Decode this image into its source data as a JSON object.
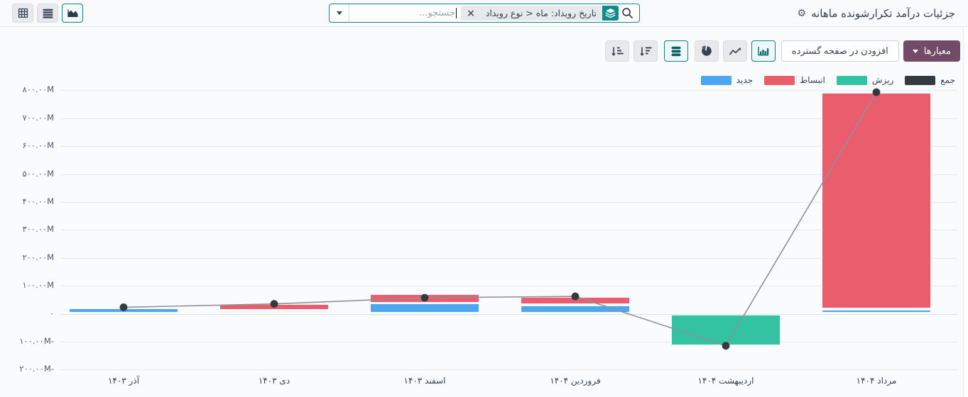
{
  "topbar": {
    "title": "جزئیات درآمد تکرارشونده ماهانه",
    "search": {
      "placeholder": "جستجو...",
      "facet_label": "تاریخ رویداد: ماه ‎>‎ نوع رویداد"
    }
  },
  "toolbar": {
    "measures_button": "معیارها",
    "insert_spreadsheet_button": "افزودن در صفحه گسترده"
  },
  "icons": {
    "view_pivot": "pivot-table-icon",
    "view_list": "list-icon",
    "view_graph": "area-chart-icon",
    "search": "magnifier-icon",
    "facet": "layers-icon",
    "facet_remove": "close-x-icon",
    "search_expand": "caret-down-icon",
    "settings": "gear-icon",
    "bar_chart": "bar-chart-icon",
    "line_chart": "line-chart-icon",
    "pie_chart": "pie-chart-icon",
    "stacked": "stack-icon",
    "sort_desc": "sort-amount-desc-icon",
    "sort_asc": "sort-amount-asc-icon"
  },
  "chart_data": {
    "type": "bar",
    "subtype": "stacked-bars-with-total-line",
    "title": "جزئیات درآمد تکرارشونده ماهانه",
    "unit": "M",
    "grid": true,
    "legend_position": "top-right",
    "ylim": [
      -250,
      850
    ],
    "categories": [
      "آذر ۱۴۰۳",
      "دی ۱۴۰۳",
      "اسفند ۱۴۰۳",
      "فروردین ۱۴۰۴",
      "اردیبهشت ۱۴۰۴",
      "مرداد ۱۴۰۴"
    ],
    "series": [
      {
        "name": "جدید",
        "type": "bar",
        "color": "#4BA7F0",
        "values": [
          20,
          10,
          36,
          30,
          0,
          15
        ]
      },
      {
        "name": "انبساط",
        "type": "bar",
        "color": "#EA5D6D",
        "values": [
          0,
          24,
          34,
          30,
          0,
          775
        ]
      },
      {
        "name": "ریزش",
        "type": "bar",
        "color": "#33C3A3",
        "values": [
          0,
          0,
          -10,
          0,
          -112,
          0
        ]
      },
      {
        "name": "جمع",
        "type": "line",
        "color": "#343A40",
        "line_color": "#8F9295",
        "values": [
          23,
          35,
          57,
          62,
          -115,
          793
        ]
      }
    ],
    "y_ticks": [
      {
        "value": 800,
        "label": "۸۰۰.۰۰M"
      },
      {
        "value": 700,
        "label": "۷۰۰.۰۰M"
      },
      {
        "value": 600,
        "label": "۶۰۰.۰۰M"
      },
      {
        "value": 500,
        "label": "۵۰۰.۰۰M"
      },
      {
        "value": 400,
        "label": "۴۰۰.۰۰M"
      },
      {
        "value": 300,
        "label": "۳۰۰.۰۰M"
      },
      {
        "value": 200,
        "label": "۲۰۰.۰۰M"
      },
      {
        "value": 100,
        "label": "۱۰۰.۰۰M"
      },
      {
        "value": 0,
        "label": "۰"
      },
      {
        "value": -100,
        "label": "۱۰۰.۰۰M-"
      },
      {
        "value": -200,
        "label": "۲۰۰.۰۰M-"
      }
    ],
    "legend": [
      {
        "label": "جمع",
        "color": "#343A40"
      },
      {
        "label": "ریزش",
        "color": "#33C3A3"
      },
      {
        "label": "انبساط",
        "color": "#EA5D6D"
      },
      {
        "label": "جدید",
        "color": "#4BA7F0"
      }
    ]
  }
}
